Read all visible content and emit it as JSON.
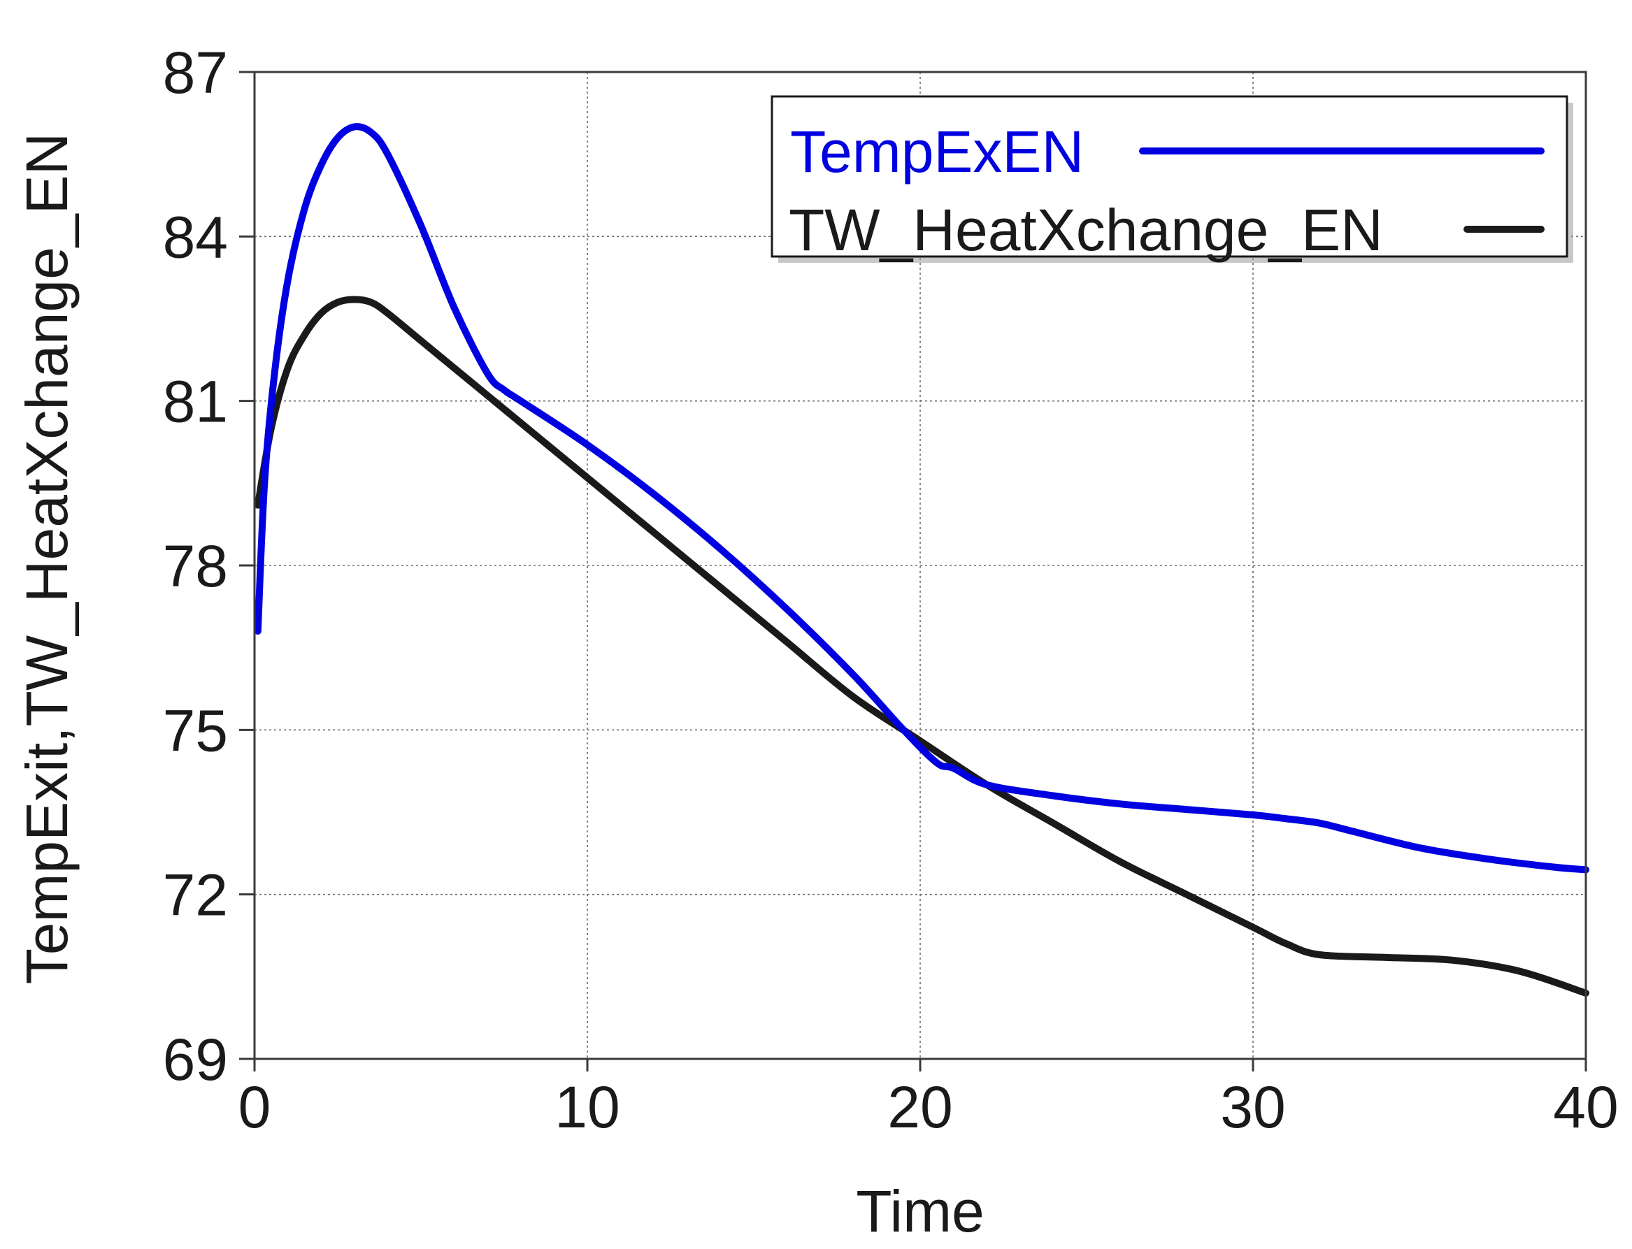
{
  "chart_data": {
    "type": "line",
    "title": "",
    "xlabel": "Time",
    "ylabel": "TempExit,TW_HeatXchange_EN",
    "xlim": [
      0,
      40
    ],
    "ylim": [
      69,
      87
    ],
    "xticks": [
      0,
      10,
      20,
      30,
      40
    ],
    "yticks": [
      69,
      72,
      75,
      78,
      81,
      84,
      87
    ],
    "xtick_labels": [
      "0",
      "10",
      "20",
      "30",
      "40"
    ],
    "ytick_labels": [
      "69",
      "72",
      "75",
      "78",
      "81",
      "84",
      "87"
    ],
    "grid": true,
    "legend_position": "top-right",
    "series": [
      {
        "name": "TempExEN",
        "color": "#0000e0",
        "x": [
          0.1,
          0.3,
          0.6,
          1.0,
          1.5,
          2.0,
          2.5,
          3.0,
          3.5,
          4.0,
          5.0,
          6.0,
          7.0,
          7.5,
          8.0,
          10.0,
          12.0,
          14.0,
          16.0,
          18.0,
          19.5,
          20.5,
          21.0,
          22.0,
          24.0,
          26.0,
          28.0,
          30.0,
          31.0,
          32.0,
          33.0,
          35.0,
          37.0,
          39.0,
          40.0
        ],
        "y": [
          76.8,
          79.5,
          81.5,
          83.2,
          84.5,
          85.3,
          85.8,
          86.0,
          85.9,
          85.5,
          84.2,
          82.7,
          81.5,
          81.2,
          81.0,
          80.2,
          79.3,
          78.3,
          77.2,
          76.0,
          75.0,
          74.4,
          74.3,
          74.0,
          73.8,
          73.65,
          73.55,
          73.45,
          73.38,
          73.3,
          73.15,
          72.85,
          72.65,
          72.5,
          72.45
        ]
      },
      {
        "name": "TW_HeatXchange_EN",
        "color": "#1a1a1a",
        "x": [
          0.1,
          0.5,
          1.0,
          1.5,
          2.0,
          2.5,
          3.0,
          3.5,
          4.0,
          5.0,
          6.0,
          7.0,
          8.0,
          10.0,
          12.0,
          14.0,
          16.0,
          18.0,
          20.0,
          22.0,
          24.0,
          26.0,
          28.0,
          30.0,
          31.0,
          32.0,
          34.0,
          36.0,
          38.0,
          40.0
        ],
        "y": [
          79.1,
          80.5,
          81.6,
          82.2,
          82.6,
          82.8,
          82.85,
          82.8,
          82.6,
          82.1,
          81.6,
          81.1,
          80.6,
          79.6,
          78.6,
          77.6,
          76.6,
          75.6,
          74.8,
          74.0,
          73.3,
          72.6,
          72.0,
          71.4,
          71.1,
          70.9,
          70.85,
          70.8,
          70.6,
          70.2
        ]
      }
    ]
  }
}
